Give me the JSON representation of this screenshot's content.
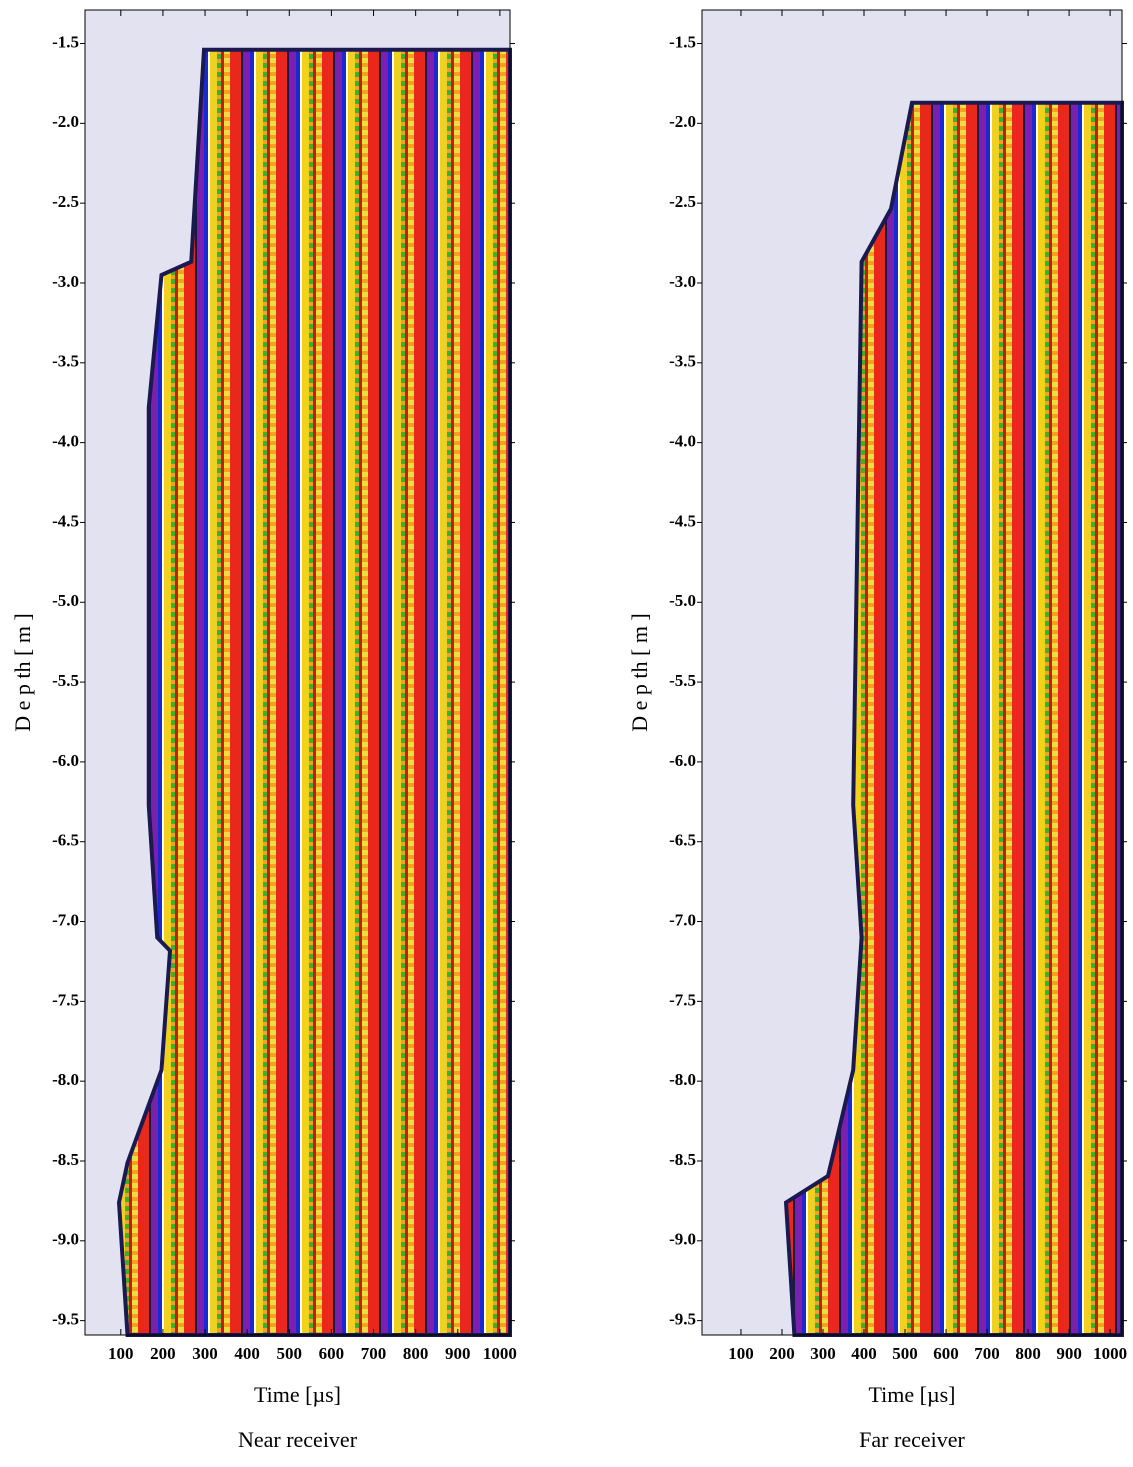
{
  "chart_data": [
    {
      "type": "image",
      "caption": "Near receiver",
      "xlabel": "Time [µs]",
      "ylabel": "D e p th [ m ]",
      "xlim": [
        15,
        1024
      ],
      "ylim": [
        -9.59,
        -1.29
      ],
      "xticks": [
        100,
        200,
        300,
        400,
        500,
        600,
        700,
        800,
        900,
        1000
      ],
      "yticks": [
        -1.5,
        {
          "value": -2,
          "label": "-2.0"
        },
        -2.5,
        {
          "value": -3,
          "label": "-3.0"
        },
        -3.5,
        {
          "value": -4,
          "label": "-4.0"
        },
        -4.5,
        {
          "value": -5,
          "label": "-5.0"
        },
        -5.5,
        {
          "value": -6,
          "label": "-6.0"
        },
        -6.5,
        {
          "value": -7,
          "label": "-7.0"
        },
        -7.5,
        {
          "value": -8,
          "label": "-8.0"
        },
        -8.5,
        {
          "value": -9,
          "label": "-9.0"
        },
        -9.5
      ]
    },
    {
      "type": "image",
      "caption": "Far receiver",
      "xlabel": "Time [µs]",
      "ylabel": "D e p th [ m ]",
      "xlim": [
        5,
        1029
      ],
      "ylim": [
        -9.59,
        -1.29
      ],
      "xticks": [
        100,
        200,
        300,
        400,
        500,
        600,
        700,
        800,
        900,
        1000
      ],
      "yticks": [
        -1.5,
        {
          "value": -2,
          "label": "-2.0"
        },
        -2.5,
        {
          "value": -3,
          "label": "-3.0"
        },
        -3.5,
        {
          "value": -4,
          "label": "-4.0"
        },
        -4.5,
        {
          "value": -5,
          "label": "-5.0"
        },
        -5.5,
        {
          "value": -6,
          "label": "-6.0"
        },
        -6.5,
        {
          "value": -7,
          "label": "-7.0"
        },
        -7.5,
        {
          "value": -8,
          "label": "-8.0"
        },
        -8.5,
        {
          "value": -9,
          "label": "-9.0"
        },
        -9.5
      ]
    }
  ]
}
